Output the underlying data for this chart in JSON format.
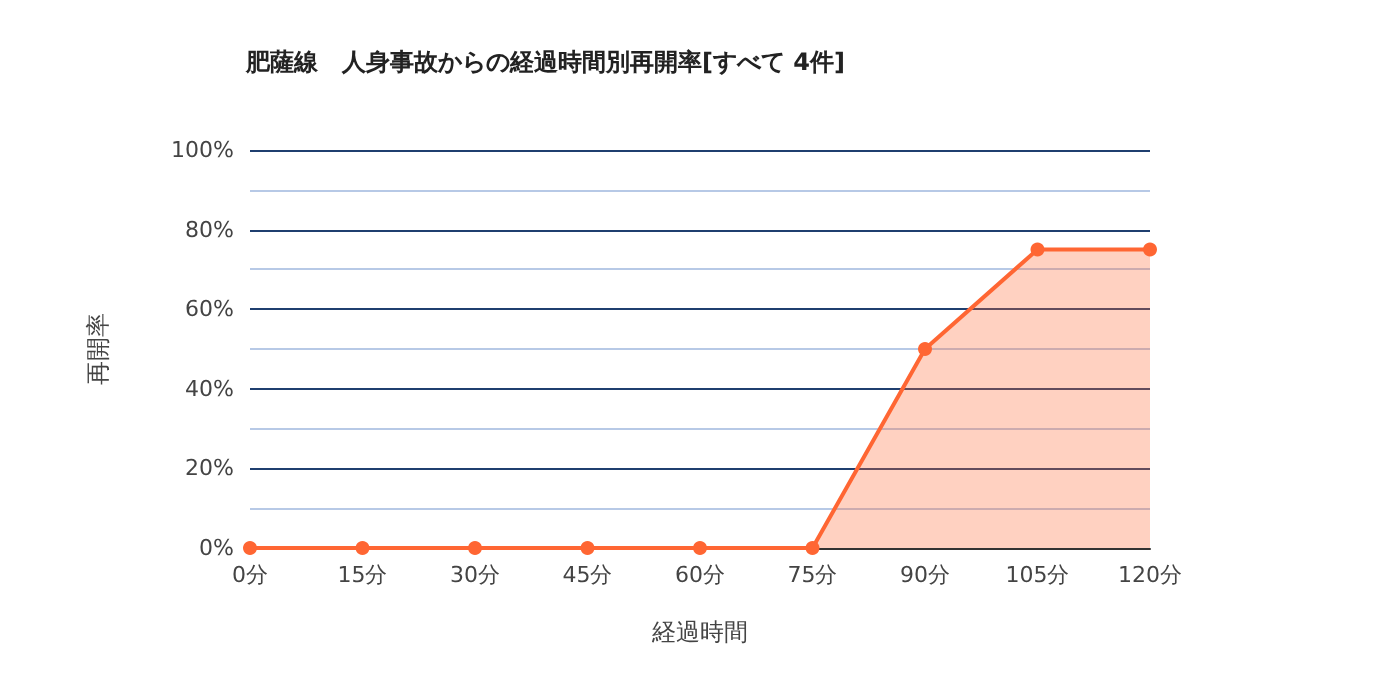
{
  "chart_data": {
    "type": "area",
    "title": "肥薩線　人身事故からの経過時間別再開率[すべて 4件]",
    "xlabel": "経過時間",
    "ylabel": "再開率",
    "categories": [
      "0分",
      "15分",
      "30分",
      "45分",
      "60分",
      "75分",
      "90分",
      "105分",
      "120分"
    ],
    "series": [
      {
        "color": "#ff6633",
        "values": [
          0,
          0,
          0,
          0,
          0,
          0,
          50,
          75,
          75
        ]
      }
    ],
    "ylim": [
      0,
      100
    ],
    "yticks": [
      {
        "value": 0,
        "label": "0%"
      },
      {
        "value": 10,
        "label": null
      },
      {
        "value": 20,
        "label": "20%"
      },
      {
        "value": 30,
        "label": null
      },
      {
        "value": 40,
        "label": "40%"
      },
      {
        "value": 50,
        "label": null
      },
      {
        "value": 60,
        "label": "60%"
      },
      {
        "value": 70,
        "label": null
      },
      {
        "value": 80,
        "label": "80%"
      },
      {
        "value": 90,
        "label": null
      },
      {
        "value": 100,
        "label": "100%"
      }
    ],
    "grid": "y",
    "marker": "circle"
  }
}
